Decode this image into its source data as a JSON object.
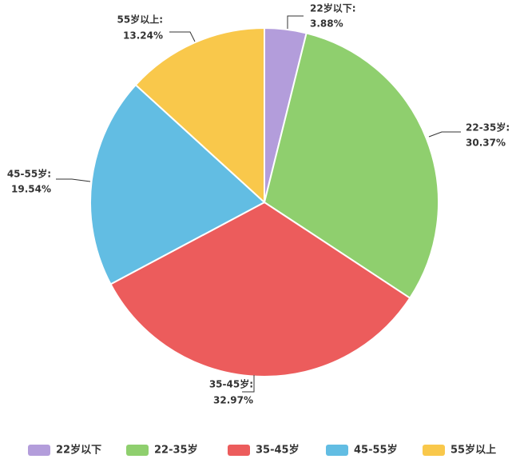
{
  "chart_data": {
    "type": "pie",
    "categories": [
      "22岁以下",
      "22-35岁",
      "35-45岁",
      "45-55岁",
      "55岁以上"
    ],
    "values": [
      3.88,
      30.37,
      32.97,
      19.54,
      13.24
    ],
    "unit": "%",
    "labels": [
      {
        "name": "22岁以下:",
        "value": "3.88%"
      },
      {
        "name": "22-35岁:",
        "value": "30.37%"
      },
      {
        "name": "35-45岁:",
        "value": "32.97%"
      },
      {
        "name": "45-55岁:",
        "value": "19.54%"
      },
      {
        "name": "55岁以上:",
        "value": "13.24%"
      }
    ],
    "colors": [
      "#b39ddb",
      "#8fcf6e",
      "#ec5c5c",
      "#62bde3",
      "#f9c84b"
    ],
    "start_angle": "12 o'clock",
    "direction": "clockwise",
    "legend": {
      "position": "bottom",
      "items": [
        "22岁以下",
        "22-35岁",
        "35-45岁",
        "45-55岁",
        "55岁以上"
      ]
    },
    "grid": false
  }
}
